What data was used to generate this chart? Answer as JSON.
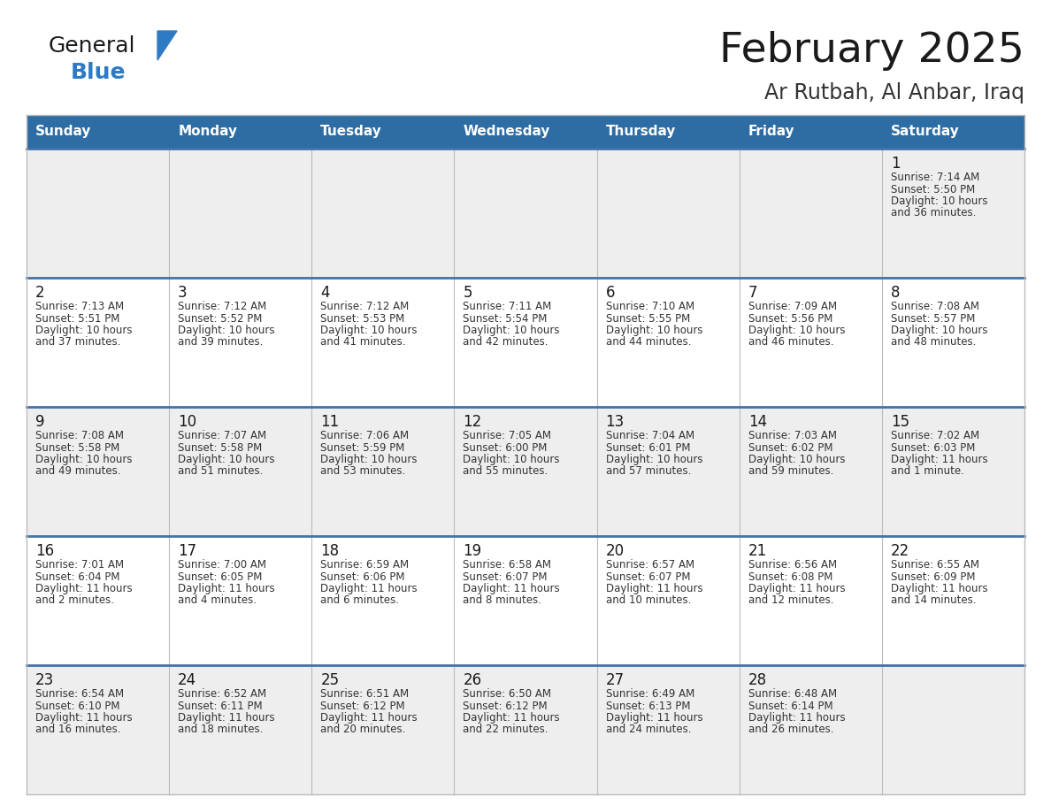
{
  "title": "February 2025",
  "subtitle": "Ar Rutbah, Al Anbar, Iraq",
  "header_color": "#2E6DA4",
  "header_text_color": "#FFFFFF",
  "background_color": "#FFFFFF",
  "cell_bg_odd": "#EEEEEE",
  "cell_bg_even": "#FFFFFF",
  "row_separator_color": "#4472A8",
  "grid_color": "#BBBBBB",
  "day_headers": [
    "Sunday",
    "Monday",
    "Tuesday",
    "Wednesday",
    "Thursday",
    "Friday",
    "Saturday"
  ],
  "title_color": "#1a1a1a",
  "subtitle_color": "#333333",
  "date_color": "#1a1a1a",
  "info_color": "#333333",
  "logo_general_color": "#1a1a1a",
  "logo_blue_color": "#2E7BC4",
  "days": [
    {
      "day": 1,
      "col": 6,
      "row": 0,
      "sunrise": "7:14 AM",
      "sunset": "5:50 PM",
      "daylight_h": "10 hours",
      "daylight_m": "and 36 minutes."
    },
    {
      "day": 2,
      "col": 0,
      "row": 1,
      "sunrise": "7:13 AM",
      "sunset": "5:51 PM",
      "daylight_h": "10 hours",
      "daylight_m": "and 37 minutes."
    },
    {
      "day": 3,
      "col": 1,
      "row": 1,
      "sunrise": "7:12 AM",
      "sunset": "5:52 PM",
      "daylight_h": "10 hours",
      "daylight_m": "and 39 minutes."
    },
    {
      "day": 4,
      "col": 2,
      "row": 1,
      "sunrise": "7:12 AM",
      "sunset": "5:53 PM",
      "daylight_h": "10 hours",
      "daylight_m": "and 41 minutes."
    },
    {
      "day": 5,
      "col": 3,
      "row": 1,
      "sunrise": "7:11 AM",
      "sunset": "5:54 PM",
      "daylight_h": "10 hours",
      "daylight_m": "and 42 minutes."
    },
    {
      "day": 6,
      "col": 4,
      "row": 1,
      "sunrise": "7:10 AM",
      "sunset": "5:55 PM",
      "daylight_h": "10 hours",
      "daylight_m": "and 44 minutes."
    },
    {
      "day": 7,
      "col": 5,
      "row": 1,
      "sunrise": "7:09 AM",
      "sunset": "5:56 PM",
      "daylight_h": "10 hours",
      "daylight_m": "and 46 minutes."
    },
    {
      "day": 8,
      "col": 6,
      "row": 1,
      "sunrise": "7:08 AM",
      "sunset": "5:57 PM",
      "daylight_h": "10 hours",
      "daylight_m": "and 48 minutes."
    },
    {
      "day": 9,
      "col": 0,
      "row": 2,
      "sunrise": "7:08 AM",
      "sunset": "5:58 PM",
      "daylight_h": "10 hours",
      "daylight_m": "and 49 minutes."
    },
    {
      "day": 10,
      "col": 1,
      "row": 2,
      "sunrise": "7:07 AM",
      "sunset": "5:58 PM",
      "daylight_h": "10 hours",
      "daylight_m": "and 51 minutes."
    },
    {
      "day": 11,
      "col": 2,
      "row": 2,
      "sunrise": "7:06 AM",
      "sunset": "5:59 PM",
      "daylight_h": "10 hours",
      "daylight_m": "and 53 minutes."
    },
    {
      "day": 12,
      "col": 3,
      "row": 2,
      "sunrise": "7:05 AM",
      "sunset": "6:00 PM",
      "daylight_h": "10 hours",
      "daylight_m": "and 55 minutes."
    },
    {
      "day": 13,
      "col": 4,
      "row": 2,
      "sunrise": "7:04 AM",
      "sunset": "6:01 PM",
      "daylight_h": "10 hours",
      "daylight_m": "and 57 minutes."
    },
    {
      "day": 14,
      "col": 5,
      "row": 2,
      "sunrise": "7:03 AM",
      "sunset": "6:02 PM",
      "daylight_h": "10 hours",
      "daylight_m": "and 59 minutes."
    },
    {
      "day": 15,
      "col": 6,
      "row": 2,
      "sunrise": "7:02 AM",
      "sunset": "6:03 PM",
      "daylight_h": "11 hours",
      "daylight_m": "and 1 minute."
    },
    {
      "day": 16,
      "col": 0,
      "row": 3,
      "sunrise": "7:01 AM",
      "sunset": "6:04 PM",
      "daylight_h": "11 hours",
      "daylight_m": "and 2 minutes."
    },
    {
      "day": 17,
      "col": 1,
      "row": 3,
      "sunrise": "7:00 AM",
      "sunset": "6:05 PM",
      "daylight_h": "11 hours",
      "daylight_m": "and 4 minutes."
    },
    {
      "day": 18,
      "col": 2,
      "row": 3,
      "sunrise": "6:59 AM",
      "sunset": "6:06 PM",
      "daylight_h": "11 hours",
      "daylight_m": "and 6 minutes."
    },
    {
      "day": 19,
      "col": 3,
      "row": 3,
      "sunrise": "6:58 AM",
      "sunset": "6:07 PM",
      "daylight_h": "11 hours",
      "daylight_m": "and 8 minutes."
    },
    {
      "day": 20,
      "col": 4,
      "row": 3,
      "sunrise": "6:57 AM",
      "sunset": "6:07 PM",
      "daylight_h": "11 hours",
      "daylight_m": "and 10 minutes."
    },
    {
      "day": 21,
      "col": 5,
      "row": 3,
      "sunrise": "6:56 AM",
      "sunset": "6:08 PM",
      "daylight_h": "11 hours",
      "daylight_m": "and 12 minutes."
    },
    {
      "day": 22,
      "col": 6,
      "row": 3,
      "sunrise": "6:55 AM",
      "sunset": "6:09 PM",
      "daylight_h": "11 hours",
      "daylight_m": "and 14 minutes."
    },
    {
      "day": 23,
      "col": 0,
      "row": 4,
      "sunrise": "6:54 AM",
      "sunset": "6:10 PM",
      "daylight_h": "11 hours",
      "daylight_m": "and 16 minutes."
    },
    {
      "day": 24,
      "col": 1,
      "row": 4,
      "sunrise": "6:52 AM",
      "sunset": "6:11 PM",
      "daylight_h": "11 hours",
      "daylight_m": "and 18 minutes."
    },
    {
      "day": 25,
      "col": 2,
      "row": 4,
      "sunrise": "6:51 AM",
      "sunset": "6:12 PM",
      "daylight_h": "11 hours",
      "daylight_m": "and 20 minutes."
    },
    {
      "day": 26,
      "col": 3,
      "row": 4,
      "sunrise": "6:50 AM",
      "sunset": "6:12 PM",
      "daylight_h": "11 hours",
      "daylight_m": "and 22 minutes."
    },
    {
      "day": 27,
      "col": 4,
      "row": 4,
      "sunrise": "6:49 AM",
      "sunset": "6:13 PM",
      "daylight_h": "11 hours",
      "daylight_m": "and 24 minutes."
    },
    {
      "day": 28,
      "col": 5,
      "row": 4,
      "sunrise": "6:48 AM",
      "sunset": "6:14 PM",
      "daylight_h": "11 hours",
      "daylight_m": "and 26 minutes."
    }
  ]
}
